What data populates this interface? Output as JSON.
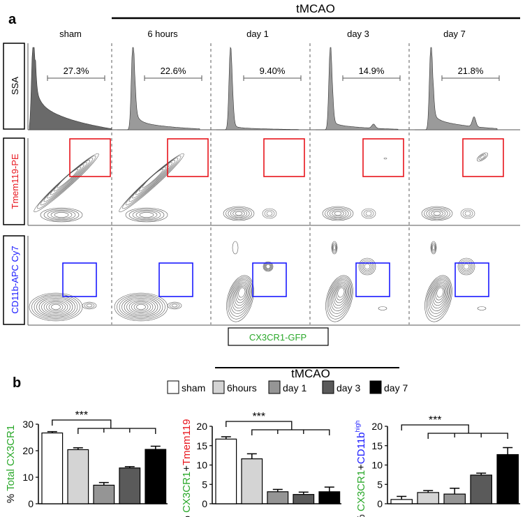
{
  "panel_a": {
    "label": "a",
    "group_label": "tMCAO",
    "columns": [
      "sham",
      "6 hours",
      "day 1",
      "day 3",
      "day 7"
    ],
    "row_labels": {
      "ssa": "SSA",
      "tmem": "Tmem119-PE",
      "cd11b": "CD11b-APC Cy7"
    },
    "x_label": "CX3CR1-GFP",
    "gate_percents": [
      "27.3%",
      "22.6%",
      "9.40%",
      "14.9%",
      "21.8%"
    ],
    "colors": {
      "tmem": "#e8141c",
      "cd11b": "#1a1aff",
      "gfp": "#2aa82a",
      "histogram": "#9a9a9a",
      "sham_histogram": "#6a6a6a"
    }
  },
  "panel_b": {
    "label": "b",
    "group_label": "tMCAO",
    "legend": [
      {
        "label": "sham",
        "color": "#ffffff"
      },
      {
        "label": "6hours",
        "color": "#d4d4d4"
      },
      {
        "label": "day 1",
        "color": "#959595"
      },
      {
        "label": "day 3",
        "color": "#5a5a5a"
      },
      {
        "label": "day 7",
        "color": "#000000"
      }
    ],
    "significance": "***"
  },
  "chart_data": [
    {
      "type": "bar",
      "ylabel": {
        "prefix": "% ",
        "parts": [
          {
            "text": "Total CX3CR1",
            "color": "#2aa82a"
          }
        ]
      },
      "ylabel_prefix": "% ",
      "ylabel_text": "Total CX3CR1",
      "categories": [
        "sham",
        "6hours",
        "day 1",
        "day 3",
        "day 7"
      ],
      "values": [
        26.7,
        20.4,
        7.0,
        13.5,
        20.5
      ],
      "errors": [
        0.5,
        0.7,
        1.0,
        0.5,
        1.2
      ],
      "ylim": [
        0,
        30
      ],
      "yticks": [
        "0",
        "10",
        "20",
        "30"
      ],
      "annotation": "***"
    },
    {
      "type": "bar",
      "ylabel_prefix": "% ",
      "ylabel_text": "CX3CR1",
      "ylabel_plus": "+",
      "ylabel_text2": "Tmem119",
      "categories": [
        "sham",
        "6hours",
        "day 1",
        "day 3",
        "day 7"
      ],
      "values": [
        16.7,
        11.6,
        3.1,
        2.4,
        3.1
      ],
      "errors": [
        0.6,
        1.3,
        0.6,
        0.6,
        1.2
      ],
      "ylim": [
        0,
        20
      ],
      "yticks": [
        "0",
        "5",
        "10",
        "15",
        "20"
      ],
      "annotation": "***"
    },
    {
      "type": "bar",
      "ylabel_prefix": "% ",
      "ylabel_text": "CX3CR1",
      "ylabel_plus": "+",
      "ylabel_text2": "CD11b",
      "ylabel_sup": "high",
      "categories": [
        "sham",
        "6hours",
        "day 1",
        "day 3",
        "day 7"
      ],
      "values": [
        1.1,
        2.9,
        2.5,
        7.4,
        12.7
      ],
      "errors": [
        0.8,
        0.5,
        1.5,
        0.5,
        1.8
      ],
      "ylim": [
        0,
        20
      ],
      "yticks": [
        "0",
        "5",
        "10",
        "15",
        "20"
      ],
      "annotation": "***"
    }
  ]
}
